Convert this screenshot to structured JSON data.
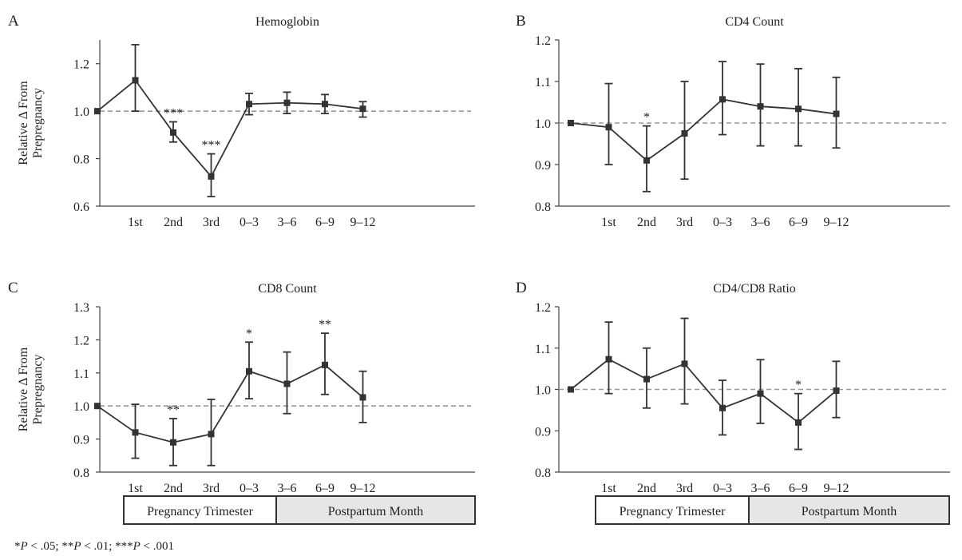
{
  "figure": {
    "footnote_parts": [
      {
        "t": "*",
        "i": false
      },
      {
        "t": "P",
        "i": true
      },
      {
        "t": " < .05; **",
        "i": false
      },
      {
        "t": "P",
        "i": true
      },
      {
        "t": " < .01; ***",
        "i": false
      },
      {
        "t": "P",
        "i": true
      },
      {
        "t": " < .001",
        "i": false
      }
    ],
    "legend_bands": [
      {
        "left": "Pregnancy Trimester",
        "right": "Postpartum Month"
      },
      {
        "left": "Pregnancy Trimester",
        "right": "Postpartum Month"
      }
    ]
  },
  "colors": {
    "line": "#333333",
    "reference": "#999999",
    "band_fill": "#e6e6e6",
    "band_border": "#333333"
  },
  "chart_data": [
    {
      "panel": "A",
      "type": "line",
      "title": "Hemoglobin",
      "ylabel": [
        "Relative Δ From",
        "Prepregnancy"
      ],
      "categories": [
        "",
        "1st",
        "2nd",
        "3rd",
        "0–3",
        "3–6",
        "6–9",
        "9–12"
      ],
      "ylim": [
        0.6,
        1.3
      ],
      "yticks": [
        "0.6",
        "0.8",
        "1.0",
        "1.2"
      ],
      "reference": 1.0,
      "values": [
        1.0,
        1.13,
        0.91,
        0.725,
        1.03,
        1.035,
        1.03,
        1.01
      ],
      "err_low": [
        1.0,
        1.0,
        0.87,
        0.64,
        0.985,
        0.99,
        0.99,
        0.975
      ],
      "err_high": [
        1.0,
        1.28,
        0.955,
        0.82,
        1.075,
        1.08,
        1.07,
        1.04
      ],
      "sig": [
        "",
        "",
        "***",
        "***",
        "",
        "",
        "",
        ""
      ]
    },
    {
      "panel": "B",
      "type": "line",
      "title": "CD4 Count",
      "ylabel": [],
      "categories": [
        "",
        "1st",
        "2nd",
        "3rd",
        "0–3",
        "3–6",
        "6–9",
        "9–12"
      ],
      "ylim": [
        0.8,
        1.2
      ],
      "yticks": [
        "0.8",
        "0.9",
        "1.0",
        "1.1",
        "1.2"
      ],
      "reference": 1.0,
      "values": [
        1.0,
        0.99,
        0.91,
        0.975,
        1.057,
        1.04,
        1.034,
        1.022
      ],
      "err_low": [
        1.0,
        0.9,
        0.835,
        0.865,
        0.972,
        0.945,
        0.945,
        0.94
      ],
      "err_high": [
        1.0,
        1.095,
        0.993,
        1.1,
        1.148,
        1.142,
        1.131,
        1.11
      ],
      "sig": [
        "",
        "",
        "*",
        "",
        "",
        "",
        "",
        ""
      ]
    },
    {
      "panel": "C",
      "type": "line",
      "title": "CD8 Count",
      "ylabel": [
        "Relative Δ From",
        "Prepregnancy"
      ],
      "categories": [
        "",
        "1st",
        "2nd",
        "3rd",
        "0–3",
        "3–6",
        "6–9",
        "9–12"
      ],
      "ylim": [
        0.8,
        1.3
      ],
      "yticks": [
        "0.8",
        "0.9",
        "1.0",
        "1.1",
        "1.2",
        "1.3"
      ],
      "reference": 1.0,
      "values": [
        1.0,
        0.92,
        0.89,
        0.915,
        1.105,
        1.067,
        1.124,
        1.026
      ],
      "err_low": [
        1.0,
        0.842,
        0.82,
        0.82,
        1.022,
        0.977,
        1.035,
        0.95
      ],
      "err_high": [
        1.0,
        1.005,
        0.962,
        1.02,
        1.193,
        1.163,
        1.22,
        1.105
      ],
      "sig": [
        "",
        "",
        "**",
        "",
        "*",
        "",
        "**",
        ""
      ]
    },
    {
      "panel": "D",
      "type": "line",
      "title": "CD4/CD8 Ratio",
      "ylabel": [],
      "categories": [
        "",
        "1st",
        "2nd",
        "3rd",
        "0–3",
        "3–6",
        "6–9",
        "9–12"
      ],
      "ylim": [
        0.8,
        1.2
      ],
      "yticks": [
        "0.8",
        "0.9",
        "1.0",
        "1.1",
        "1.2"
      ],
      "reference": 1.0,
      "values": [
        1.0,
        1.073,
        1.025,
        1.062,
        0.955,
        0.99,
        0.92,
        0.997
      ],
      "err_low": [
        1.0,
        0.99,
        0.955,
        0.965,
        0.89,
        0.918,
        0.855,
        0.932
      ],
      "err_high": [
        1.0,
        1.163,
        1.1,
        1.172,
        1.022,
        1.072,
        0.99,
        1.068
      ],
      "sig": [
        "",
        "",
        "",
        "",
        "",
        "",
        "*",
        ""
      ]
    }
  ]
}
